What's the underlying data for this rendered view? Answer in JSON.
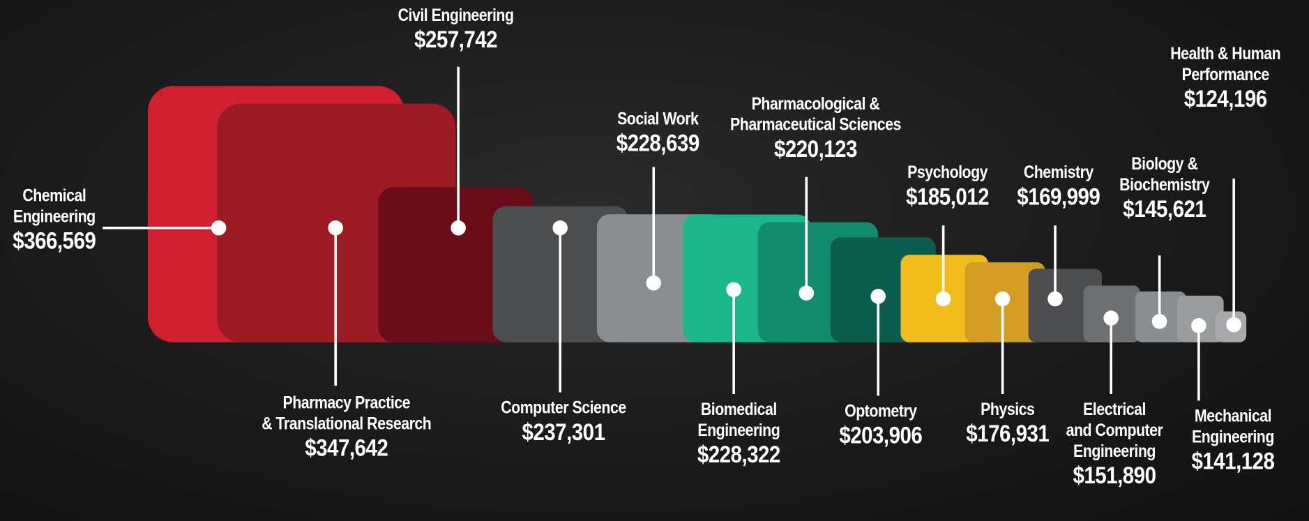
{
  "chart_data": {
    "type": "square",
    "categories": [
      "Chemical\nEngineering",
      "Pharmacy Practice\n& Translational Research",
      "Civil Engineering",
      "Computer Science",
      "Social Work",
      "Biomedical\nEngineering",
      "Pharmacological &\nPharmaceutical Sciences",
      "Optometry",
      "Psychology",
      "Physics",
      "Chemistry",
      "Electrical\nand Computer\nEngineering",
      "Biology &\nBiochemistry",
      "Mechanical\nEngineering",
      "Health & Human\nPerformance"
    ],
    "values": [
      366569,
      347642,
      257742,
      237301,
      228639,
      228322,
      220123,
      203906,
      185012,
      176931,
      169999,
      151890,
      145621,
      141128,
      124196
    ],
    "value_labels": [
      "$366,569",
      "$347,642",
      "$257,742",
      "$237,301",
      "$228,639",
      "$228,322",
      "$220,123",
      "$203,906",
      "$185,012",
      "$176,931",
      "$169,999",
      "$151,890",
      "$145,621",
      "$141,128",
      "$124,196"
    ],
    "colors": [
      "#d0202f",
      "#9c1b24",
      "#6a0c18",
      "#4b4d4f",
      "#8b8e90",
      "#1bb68a",
      "#128a6d",
      "#0d5d4f",
      "#f2bc1c",
      "#d39c24",
      "#4b4d4f",
      "#6d6f71",
      "#8b8e90",
      "#9a9c9e",
      "#a7a9ab"
    ]
  }
}
